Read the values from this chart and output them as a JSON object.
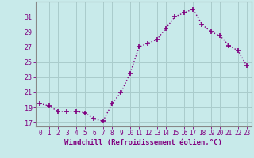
{
  "x": [
    0,
    1,
    2,
    3,
    4,
    5,
    6,
    7,
    8,
    9,
    10,
    11,
    12,
    13,
    14,
    15,
    16,
    17,
    18,
    19,
    20,
    21,
    22,
    23
  ],
  "y": [
    19.5,
    19.2,
    18.5,
    18.5,
    18.5,
    18.3,
    17.5,
    17.2,
    19.5,
    21.0,
    23.5,
    27.0,
    27.5,
    28.0,
    29.5,
    31.0,
    31.5,
    32.0,
    30.0,
    29.0,
    28.5,
    27.2,
    26.5,
    24.5
  ],
  "line_color": "#800080",
  "marker": "+",
  "marker_size": 4,
  "marker_lw": 1.2,
  "line_width": 1.0,
  "linestyle": ":",
  "bg_color": "#c8eaea",
  "grid_color": "#aacccc",
  "xlabel": "Windchill (Refroidissement éolien,°C)",
  "ylabel_ticks": [
    17,
    19,
    21,
    23,
    25,
    27,
    29,
    31
  ],
  "xtick_labels": [
    "0",
    "1",
    "2",
    "3",
    "4",
    "5",
    "6",
    "7",
    "8",
    "9",
    "10",
    "11",
    "12",
    "13",
    "14",
    "15",
    "16",
    "17",
    "18",
    "19",
    "20",
    "21",
    "22",
    "23"
  ],
  "ylim": [
    16.5,
    33.0
  ],
  "xlim": [
    -0.5,
    23.5
  ],
  "axis_color": "#888888",
  "font_color": "#800080",
  "tick_fontsize": 6,
  "xlabel_fontsize": 6.5
}
